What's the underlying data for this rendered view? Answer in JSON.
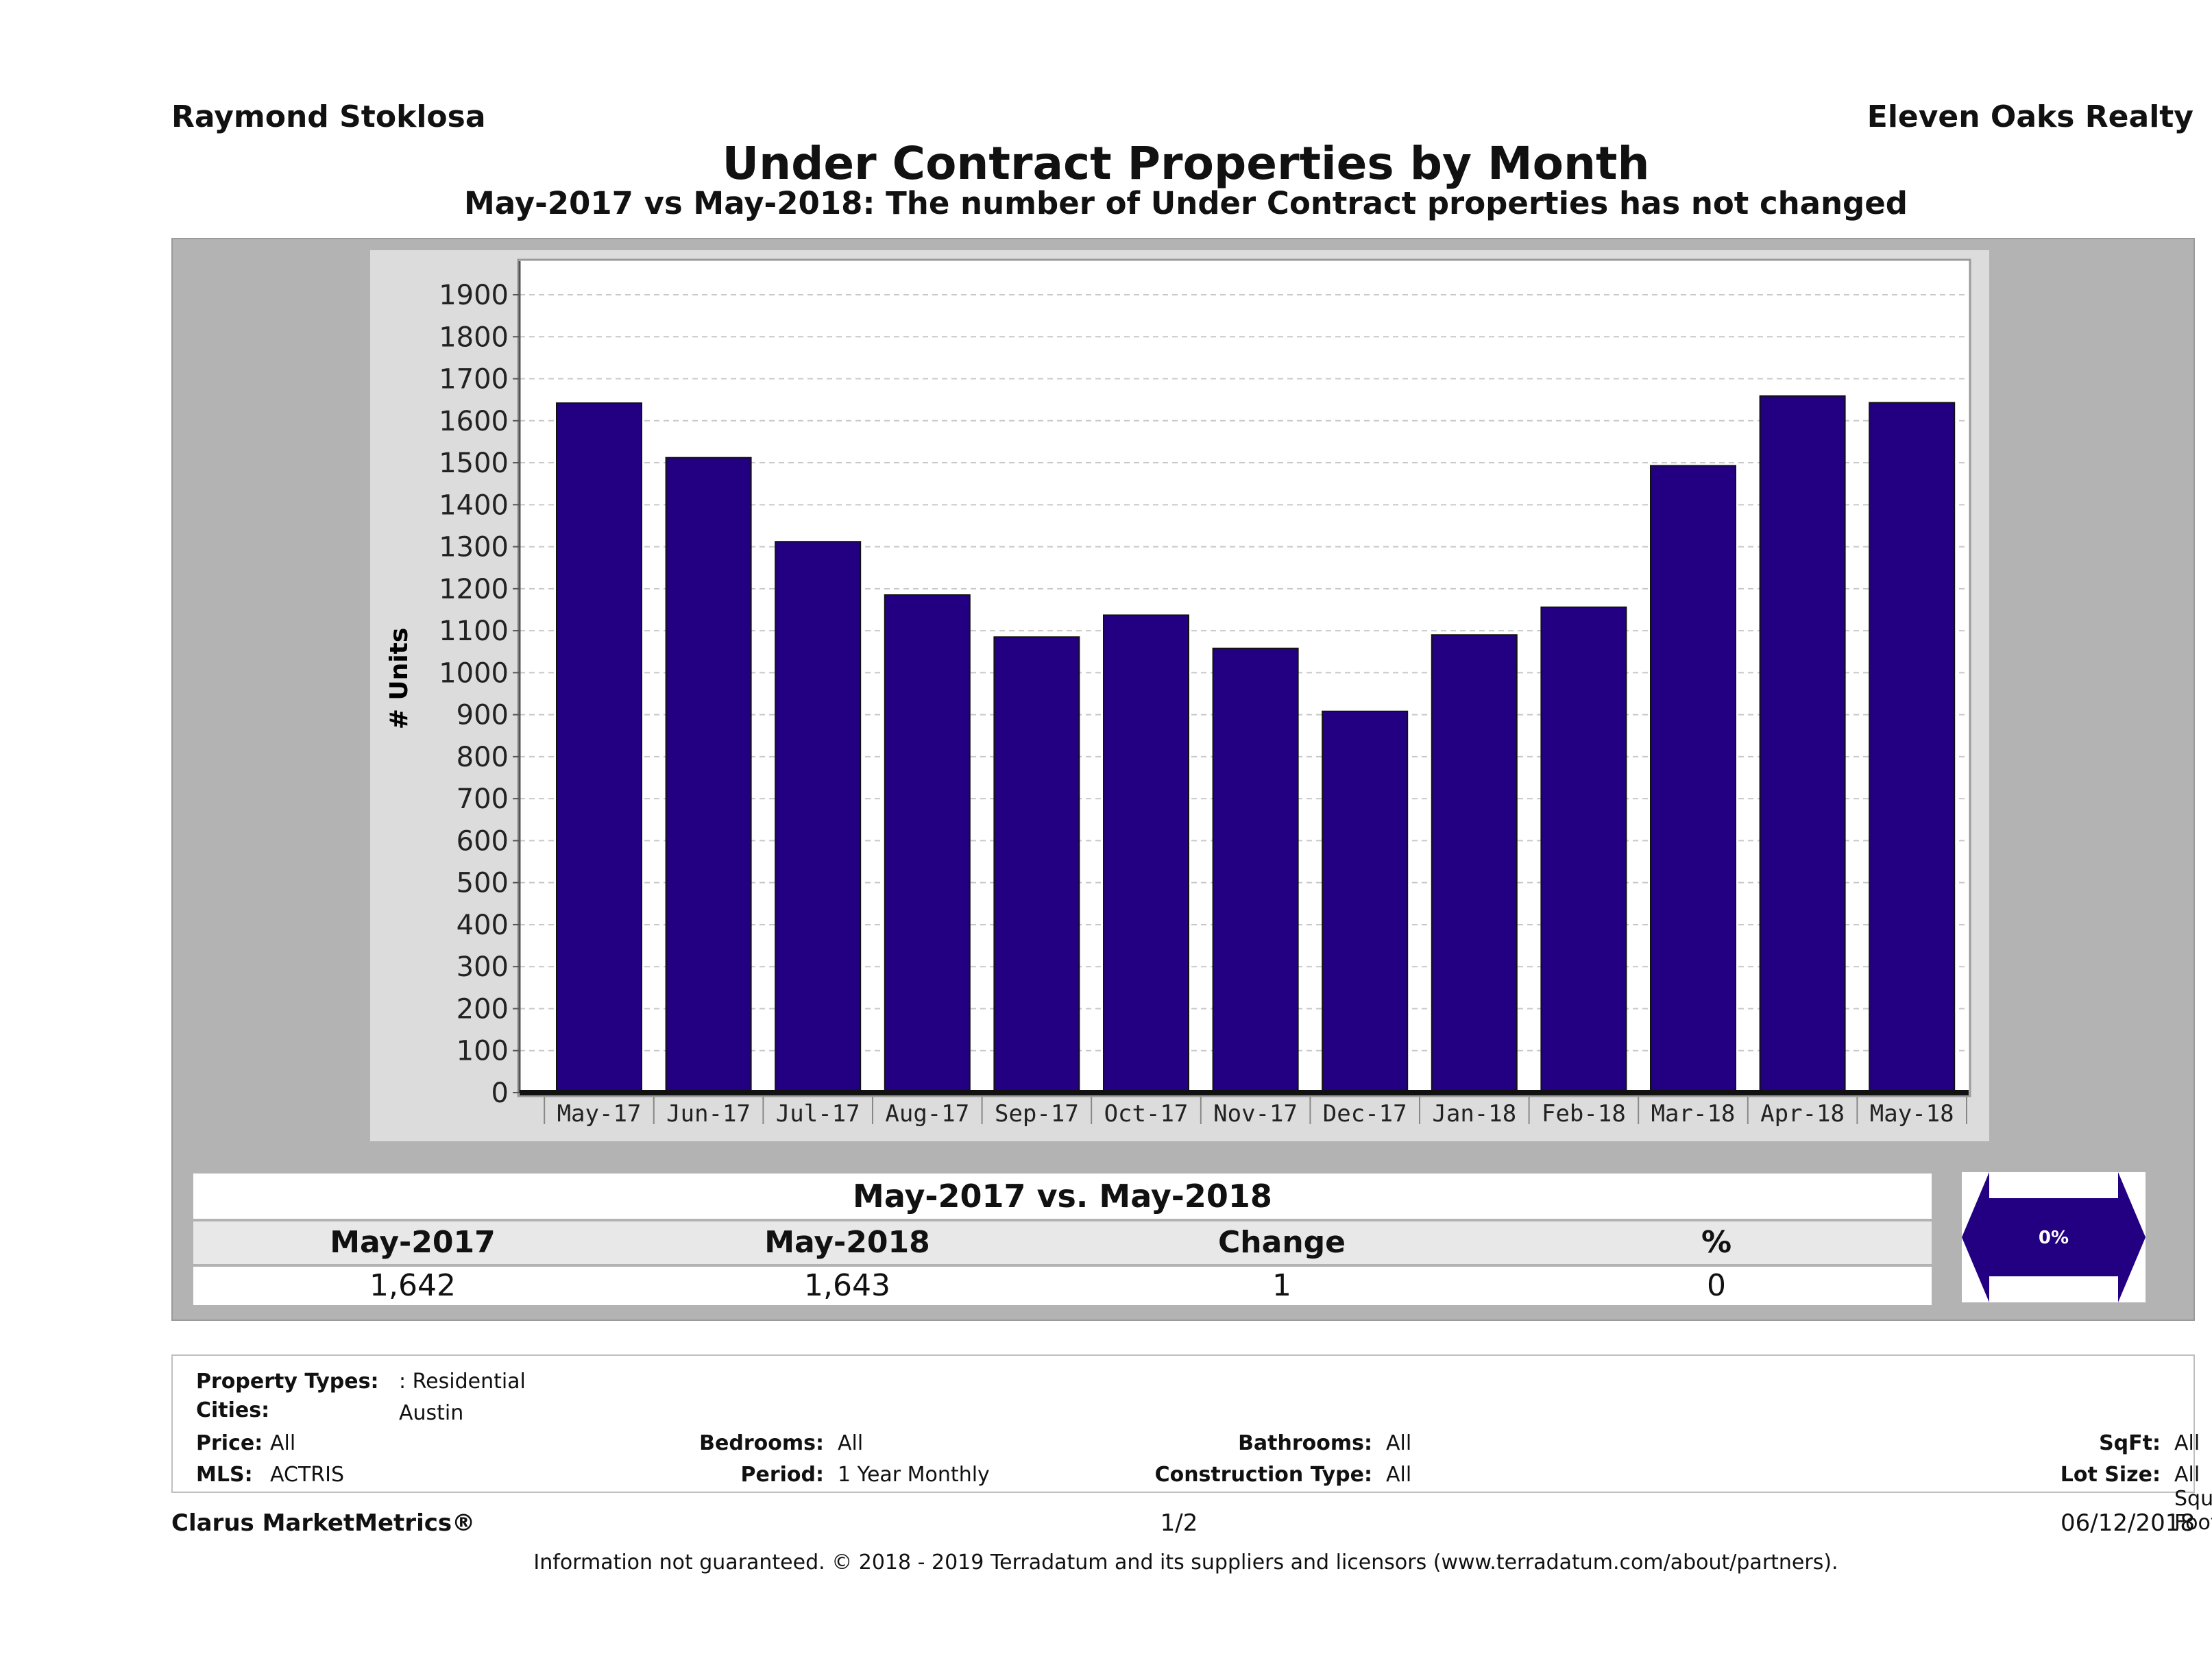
{
  "header": {
    "agent": "Raymond Stoklosa",
    "brokerage": "Eleven Oaks Realty",
    "title": "Under Contract Properties by Month",
    "subtitle": "May-2017 vs May-2018: The number of Under Contract  properties has not changed"
  },
  "chart_data": {
    "type": "bar",
    "categories": [
      "May-17",
      "Jun-17",
      "Jul-17",
      "Aug-17",
      "Sep-17",
      "Oct-17",
      "Nov-17",
      "Dec-17",
      "Jan-18",
      "Feb-18",
      "Mar-18",
      "Apr-18",
      "May-18"
    ],
    "values": [
      1642,
      1512,
      1312,
      1185,
      1085,
      1137,
      1058,
      908,
      1090,
      1156,
      1493,
      1659,
      1643
    ],
    "ylabel": "# Units",
    "ylim": [
      0,
      1980
    ],
    "yticks": [
      0,
      100,
      200,
      300,
      400,
      500,
      600,
      700,
      800,
      900,
      1000,
      1100,
      1200,
      1300,
      1400,
      1500,
      1600,
      1700,
      1800,
      1900
    ],
    "grid": true,
    "bar_color": "#230082"
  },
  "summary": {
    "heading": "May-2017 vs. May-2018",
    "labels": [
      "May-2017",
      "May-2018",
      "Change",
      "%"
    ],
    "values": [
      "1,642",
      "1,643",
      "1",
      "0"
    ],
    "arrow_label": "0%"
  },
  "filters": {
    "property_types_label": "Property Types:",
    "property_types_value": ": Residential",
    "cities_label": "Cities:",
    "cities_value": "Austin",
    "price_label": "Price:",
    "price_value": "All",
    "mls_label": "MLS:",
    "mls_value": "ACTRIS",
    "bedrooms_label": "Bedrooms:",
    "bedrooms_value": "All",
    "period_label": "Period:",
    "period_value": "1 Year Monthly",
    "bathrooms_label": "Bathrooms:",
    "bathrooms_value": "All",
    "construction_label": "Construction Type:",
    "construction_value": "All",
    "sqft_label": "SqFt:",
    "sqft_value": "All",
    "lot_size_label": "Lot Size:",
    "lot_size_value": "All Square Footage"
  },
  "footer": {
    "product": "Clarus MarketMetrics®",
    "page": "1/2",
    "date": "06/12/2018",
    "disclaimer": "Information not guaranteed. © 2018 - 2019 Terradatum and its suppliers and licensors (www.terradatum.com/about/partners)."
  }
}
